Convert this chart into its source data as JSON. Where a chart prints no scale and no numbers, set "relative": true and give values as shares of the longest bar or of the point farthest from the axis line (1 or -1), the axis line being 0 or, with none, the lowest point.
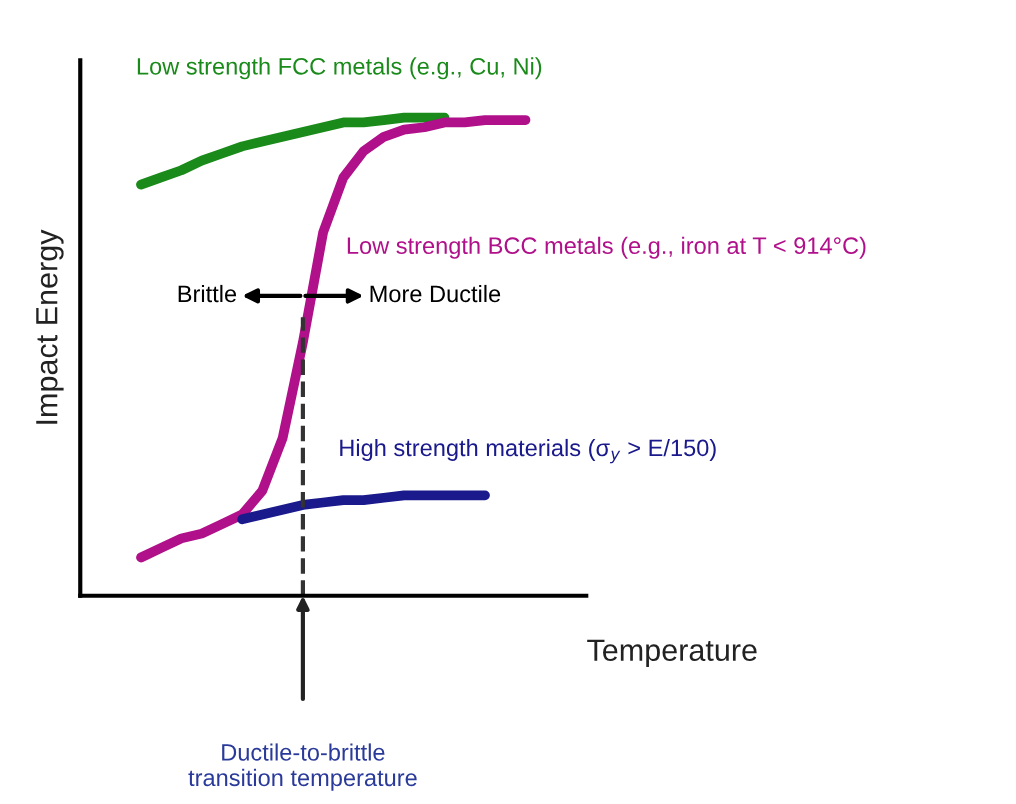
{
  "chart_data": {
    "type": "line",
    "relative": true,
    "xlabel": "Temperature",
    "ylabel": "Impact Energy",
    "categories": [
      null,
      null,
      null,
      null,
      null,
      null,
      null,
      null,
      null,
      null,
      null,
      null,
      null,
      null,
      null,
      null,
      null,
      null,
      null,
      null,
      null,
      null,
      null,
      null,
      null,
      null
    ],
    "series": [
      {
        "name": "Low strength FCC metals (e.g., Cu, Ni)",
        "color": "#1a8a1a",
        "values": [
          null,
          null,
          null,
          0.86,
          0.875,
          0.89,
          0.91,
          0.925,
          0.94,
          0.95,
          0.96,
          0.97,
          0.98,
          0.99,
          0.99,
          0.995,
          1,
          1,
          1,
          null,
          null,
          null,
          null,
          null,
          null,
          null
        ]
      },
      {
        "name": "Low strength BCC metals (e.g., iron at T < 914°C)",
        "color": "#b0108a",
        "values": [
          null,
          null,
          null,
          0.08,
          0.1,
          0.12,
          0.13,
          0.15,
          0.17,
          0.22,
          0.33,
          0.53,
          0.76,
          0.875,
          0.93,
          0.96,
          0.975,
          0.98,
          0.99,
          0.99,
          0.995,
          0.995,
          0.995,
          null,
          null,
          null
        ]
      },
      {
        "name": "High strength materials (σ$_{y}$ > E/150)",
        "color": "#1a1a8c",
        "values": [
          null,
          null,
          null,
          null,
          null,
          null,
          null,
          null,
          0.16,
          0.17,
          0.18,
          0.19,
          0.195,
          0.2,
          0.2,
          0.205,
          0.21,
          0.21,
          0.21,
          0.21,
          0.21,
          null,
          null,
          null,
          null,
          null
        ]
      }
    ],
    "annotations": [
      "Brittle",
      "More Ductile",
      "Ductile-to-brittle\ntransition temperature"
    ],
    "legend": false,
    "line_style": "solid",
    "marker": "none"
  }
}
